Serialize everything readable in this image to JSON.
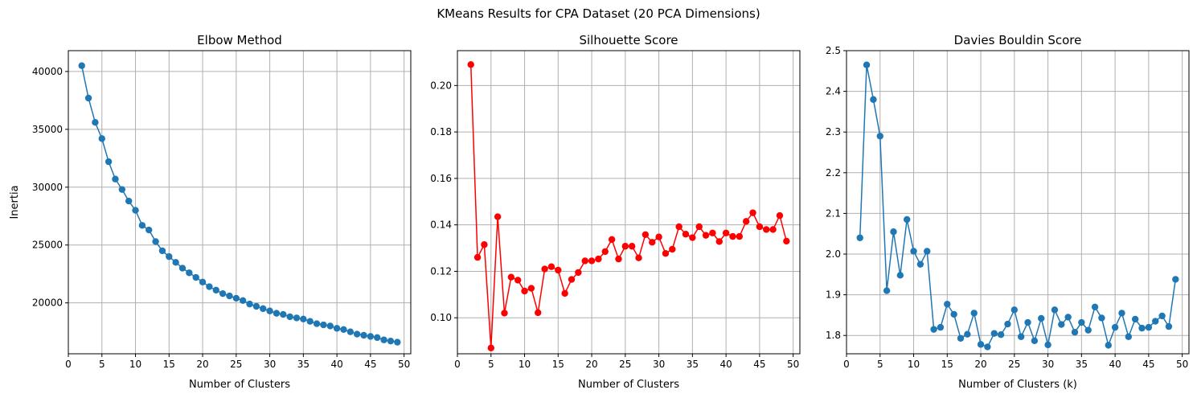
{
  "suptitle": "KMeans Results for CPA Dataset (20 PCA Dimensions)",
  "chart_data": [
    {
      "type": "line",
      "title": "Elbow Method",
      "xlabel": "Number of Clusters",
      "ylabel": "Inertia",
      "xlim": [
        0,
        51
      ],
      "ylim": [
        15600,
        41800
      ],
      "xticks": [
        0,
        5,
        10,
        15,
        20,
        25,
        30,
        35,
        40,
        45,
        50
      ],
      "yticks": [
        20000,
        25000,
        30000,
        35000,
        40000
      ],
      "grid": true,
      "color": "#1f77b4",
      "marker": "circle",
      "x": [
        2,
        3,
        4,
        5,
        6,
        7,
        8,
        9,
        10,
        11,
        12,
        13,
        14,
        15,
        16,
        17,
        18,
        19,
        20,
        21,
        22,
        23,
        24,
        25,
        26,
        27,
        28,
        29,
        30,
        31,
        32,
        33,
        34,
        35,
        36,
        37,
        38,
        39,
        40,
        41,
        42,
        43,
        44,
        45,
        46,
        47,
        48,
        49
      ],
      "values": [
        40500,
        37700,
        35600,
        34200,
        32200,
        30700,
        29800,
        28800,
        28000,
        26700,
        26300,
        25300,
        24500,
        24000,
        23500,
        23000,
        22600,
        22200,
        21800,
        21400,
        21100,
        20800,
        20600,
        20400,
        20200,
        19900,
        19700,
        19500,
        19300,
        19100,
        19000,
        18800,
        18700,
        18600,
        18400,
        18200,
        18100,
        18000,
        17800,
        17700,
        17500,
        17300,
        17200,
        17100,
        17000,
        16800,
        16700,
        16600
      ]
    },
    {
      "type": "line",
      "title": "Silhouette Score",
      "xlabel": "Number of Clusters",
      "ylabel": "",
      "xlim": [
        0,
        51
      ],
      "ylim": [
        0.0845,
        0.215
      ],
      "xticks": [
        0,
        5,
        10,
        15,
        20,
        25,
        30,
        35,
        40,
        45,
        50
      ],
      "yticks": [
        0.1,
        0.12,
        0.14,
        0.16,
        0.18,
        0.2
      ],
      "ytick_labels": [
        "0.10",
        "0.12",
        "0.14",
        "0.16",
        "0.18",
        "0.20"
      ],
      "grid": true,
      "color": "#ff0000",
      "marker": "circle",
      "x": [
        2,
        3,
        4,
        5,
        6,
        7,
        8,
        9,
        10,
        11,
        12,
        13,
        14,
        15,
        16,
        17,
        18,
        19,
        20,
        21,
        22,
        23,
        24,
        25,
        26,
        27,
        28,
        29,
        30,
        31,
        32,
        33,
        34,
        35,
        36,
        37,
        38,
        39,
        40,
        41,
        42,
        43,
        44,
        45,
        46,
        47,
        48,
        49
      ],
      "values": [
        0.209,
        0.126,
        0.1315,
        0.087,
        0.1435,
        0.102,
        0.1175,
        0.1162,
        0.1115,
        0.1127,
        0.1022,
        0.121,
        0.122,
        0.1205,
        0.1105,
        0.1165,
        0.1195,
        0.1245,
        0.1245,
        0.1253,
        0.1285,
        0.1337,
        0.1253,
        0.1308,
        0.1308,
        0.1258,
        0.1358,
        0.1325,
        0.1348,
        0.1277,
        0.1295,
        0.1392,
        0.136,
        0.1345,
        0.1392,
        0.1355,
        0.1365,
        0.1328,
        0.1365,
        0.135,
        0.135,
        0.1415,
        0.1452,
        0.1392,
        0.138,
        0.138,
        0.144,
        0.133
      ]
    },
    {
      "type": "line",
      "title": "Davies Bouldin Score",
      "xlabel": "Number of Clusters (k)",
      "ylabel": "",
      "xlim": [
        0,
        51
      ],
      "ylim": [
        1.755,
        2.5
      ],
      "xticks": [
        0,
        5,
        10,
        15,
        20,
        25,
        30,
        35,
        40,
        45,
        50
      ],
      "yticks": [
        1.8,
        1.9,
        2.0,
        2.1,
        2.2,
        2.3,
        2.4,
        2.5
      ],
      "ytick_labels": [
        "1.8",
        "1.9",
        "2.0",
        "2.1",
        "2.2",
        "2.3",
        "2.4",
        "2.5"
      ],
      "grid": true,
      "color": "#1f77b4",
      "marker": "circle",
      "x": [
        2,
        3,
        4,
        5,
        6,
        7,
        8,
        9,
        10,
        11,
        12,
        13,
        14,
        15,
        16,
        17,
        18,
        19,
        20,
        21,
        22,
        23,
        24,
        25,
        26,
        27,
        28,
        29,
        30,
        31,
        32,
        33,
        34,
        35,
        36,
        37,
        38,
        39,
        40,
        41,
        42,
        43,
        44,
        45,
        46,
        47,
        48,
        49
      ],
      "values": [
        2.04,
        2.465,
        2.38,
        2.29,
        1.91,
        2.055,
        1.948,
        2.085,
        2.007,
        1.975,
        2.007,
        1.815,
        1.82,
        1.877,
        1.852,
        1.793,
        1.803,
        1.855,
        1.778,
        1.772,
        1.805,
        1.802,
        1.828,
        1.863,
        1.797,
        1.832,
        1.787,
        1.842,
        1.777,
        1.863,
        1.827,
        1.845,
        1.808,
        1.832,
        1.813,
        1.87,
        1.843,
        1.776,
        1.82,
        1.855,
        1.797,
        1.84,
        1.818,
        1.82,
        1.835,
        1.848,
        1.822,
        1.938
      ]
    }
  ]
}
